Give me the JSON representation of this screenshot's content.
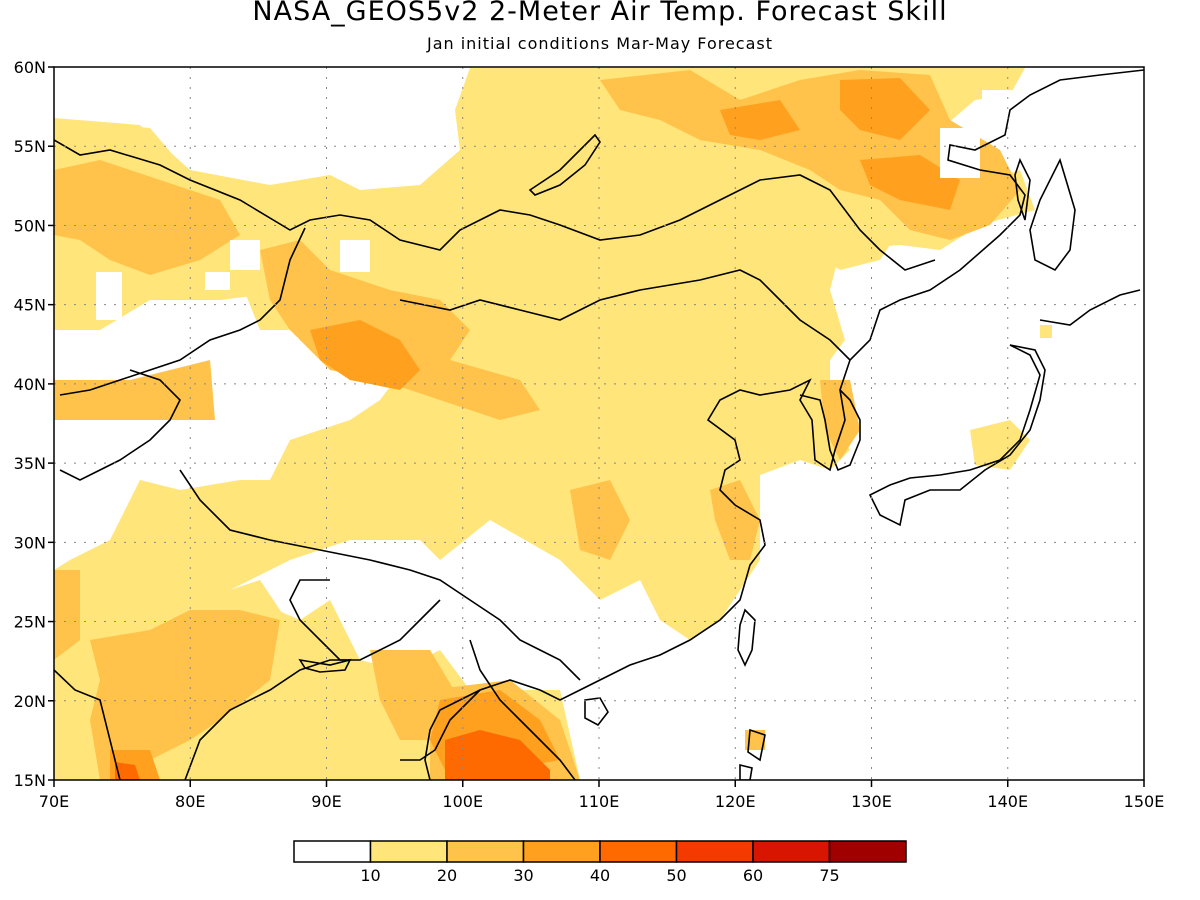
{
  "title": "NASA_GEOS5v2 2-Meter Air Temp. Forecast Skill",
  "subtitle": "Jan initial conditions  Mar-May Forecast",
  "map": {
    "lon_range": [
      70,
      150
    ],
    "lat_range": [
      15,
      60
    ],
    "lon_ticks": [
      "70E",
      "80E",
      "90E",
      "100E",
      "110E",
      "120E",
      "130E",
      "140E",
      "150E"
    ],
    "lat_ticks": [
      "60N",
      "55N",
      "50N",
      "45N",
      "40N",
      "35N",
      "30N",
      "25N",
      "20N",
      "15N"
    ],
    "grid": "dotted"
  },
  "colorbar": {
    "labels": [
      "10",
      "20",
      "30",
      "40",
      "50",
      "60",
      "75"
    ],
    "colors": [
      "#ffffff",
      "#ffe57a",
      "#ffc24a",
      "#ffa01e",
      "#ff6a00",
      "#f53a00",
      "#d81600",
      "#a00000"
    ]
  }
}
